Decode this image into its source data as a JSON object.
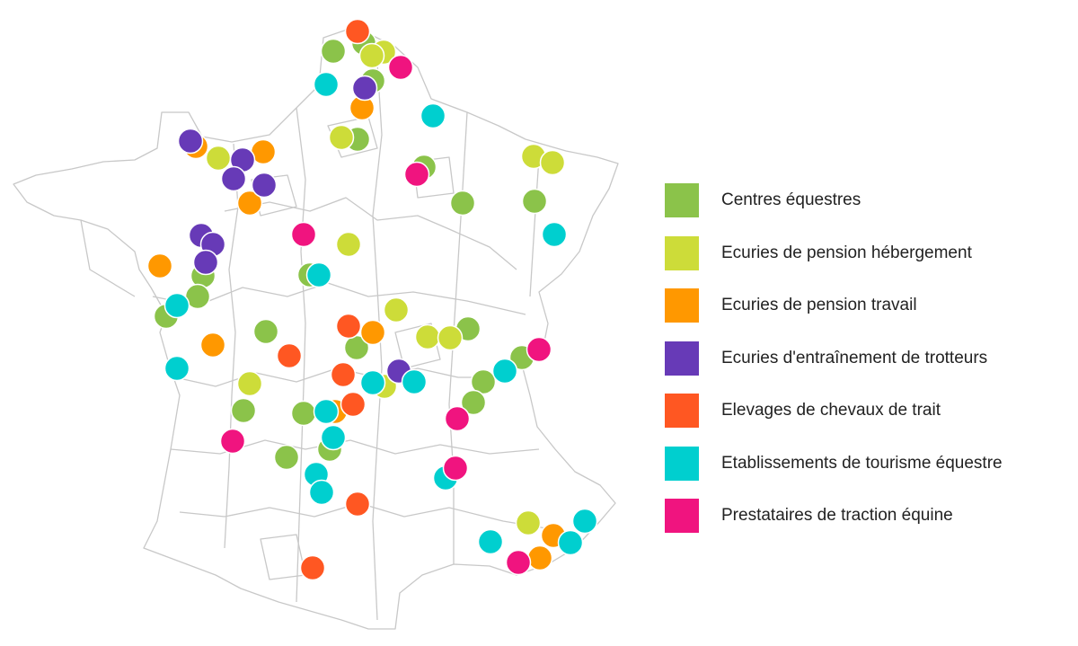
{
  "map": {
    "colors": {
      "outline": "#c8c8c8",
      "marker_stroke": "#ffffff"
    }
  },
  "legend": {
    "items": [
      {
        "key": "centres",
        "label": "Centres équestres",
        "color": "#8bc34a"
      },
      {
        "key": "pension_hebergement",
        "label": "Ecuries de pension hébergement",
        "color": "#cddc39"
      },
      {
        "key": "pension_travail",
        "label": "Ecuries de pension travail",
        "color": "#ff9800"
      },
      {
        "key": "trotteurs",
        "label": "Ecuries d'entraînement de trotteurs",
        "color": "#673ab7"
      },
      {
        "key": "trait",
        "label": "Elevages de chevaux de trait",
        "color": "#ff5722"
      },
      {
        "key": "tourisme",
        "label": "Etablissements de tourisme équestre",
        "color": "#00cfcf"
      },
      {
        "key": "traction",
        "label": "Prestataires de traction équine",
        "color": "#f0147f"
      }
    ]
  }
}
